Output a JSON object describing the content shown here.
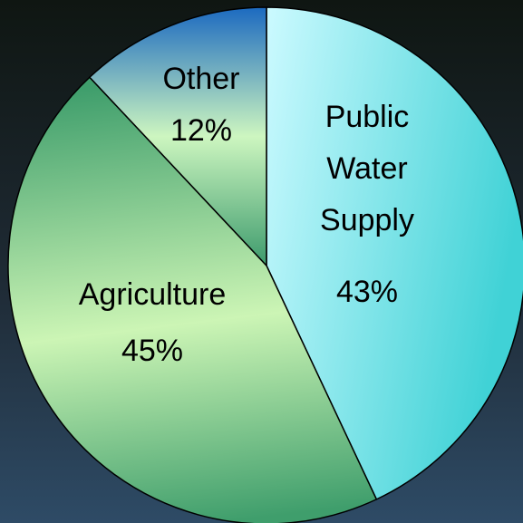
{
  "chart_data": {
    "type": "pie",
    "slices": [
      {
        "label": "Public Water Supply",
        "label_lines": [
          "Public",
          "Water",
          "Supply"
        ],
        "value": 43,
        "value_label": "43%",
        "fill_key": "pub"
      },
      {
        "label": "Agriculture",
        "label_lines": [
          "Agriculture"
        ],
        "value": 45,
        "value_label": "45%",
        "fill_key": "agr"
      },
      {
        "label": "Other",
        "label_lines": [
          "Other"
        ],
        "value": 12,
        "value_label": "12%",
        "fill_key": "oth"
      }
    ],
    "start_angle_deg": 0,
    "direction": "clockwise",
    "legend": "none"
  },
  "colors": {
    "background_top": "#0f1612",
    "background_mid": "#1f2b36",
    "background_bottom": "#2e4b66",
    "public_water_supply": [
      "#ccfaff",
      "#40d2d6"
    ],
    "agriculture": [
      "#3f9e6c",
      "#ccf5b5"
    ],
    "other": [
      "#1c6ac0",
      "#cdf6c0",
      "#3c9a6c"
    ],
    "slice_border": "#000000",
    "label_text": "#000000"
  }
}
